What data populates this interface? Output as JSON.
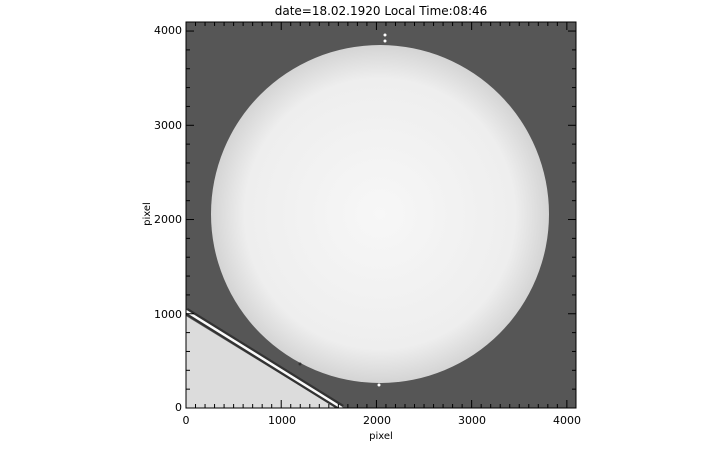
{
  "title": "date=18.02.1920 Local Time:08:46",
  "xaxis": {
    "label": "pixel",
    "range": [
      0,
      4096
    ],
    "ticks": [
      0,
      1000,
      2000,
      3000,
      4000
    ],
    "tick_labels": [
      "0",
      "1000",
      "2000",
      "3000",
      "4000"
    ]
  },
  "yaxis": {
    "label": "pixel",
    "range": [
      0,
      4096
    ],
    "ticks": [
      0,
      1000,
      2000,
      3000,
      4000
    ],
    "tick_labels": [
      "0",
      "1000",
      "2000",
      "3000",
      "4000"
    ]
  },
  "colors": {
    "background_sky": "#565656",
    "solar_disk": "#f2f2f2",
    "occulted_corner": "#dcdcdc"
  }
}
